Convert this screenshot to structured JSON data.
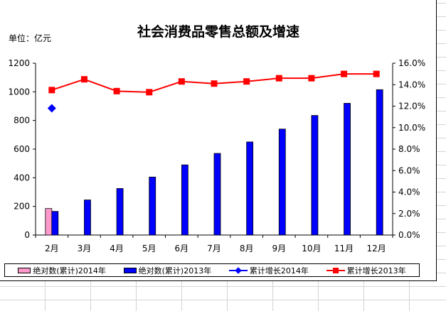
{
  "chart_data": {
    "type": "bar+line",
    "title": "社会消费品零售总额及增速",
    "unit_label": "单位：亿元",
    "categories": [
      "2月",
      "3月",
      "4月",
      "5月",
      "6月",
      "7月",
      "8月",
      "9月",
      "10月",
      "11月",
      "12月"
    ],
    "y_left": {
      "min": 0,
      "max": 1200,
      "ticks": [
        "0",
        "200",
        "400",
        "600",
        "800",
        "1000",
        "1200"
      ]
    },
    "y_right": {
      "min": 0,
      "max": 16,
      "ticks": [
        "0.0%",
        "2.0%",
        "4.0%",
        "6.0%",
        "8.0%",
        "10.0%",
        "12.0%",
        "14.0%",
        "16.0%"
      ]
    },
    "series": [
      {
        "name": "绝对数(累计)2014年",
        "kind": "bar",
        "color": "#ff99cc",
        "axis": "left",
        "values": [
          185,
          null,
          null,
          null,
          null,
          null,
          null,
          null,
          null,
          null,
          null
        ]
      },
      {
        "name": "绝对数(累计)2013年",
        "kind": "bar",
        "color": "#0000ff",
        "axis": "left",
        "values": [
          165,
          245,
          325,
          405,
          490,
          570,
          650,
          740,
          835,
          920,
          1015
        ]
      },
      {
        "name": "累计增长2014年",
        "kind": "line",
        "marker": "diamond",
        "color": "#0000ff",
        "axis": "right",
        "values": [
          11.8,
          null,
          null,
          null,
          null,
          null,
          null,
          null,
          null,
          null,
          null
        ]
      },
      {
        "name": "累计增长2013年",
        "kind": "line",
        "marker": "square",
        "color": "#ff0000",
        "axis": "right",
        "values": [
          13.5,
          14.5,
          13.4,
          13.3,
          14.3,
          14.1,
          14.3,
          14.6,
          14.6,
          15.0,
          15.0
        ]
      }
    ],
    "grid": false,
    "legend_position": "bottom"
  }
}
